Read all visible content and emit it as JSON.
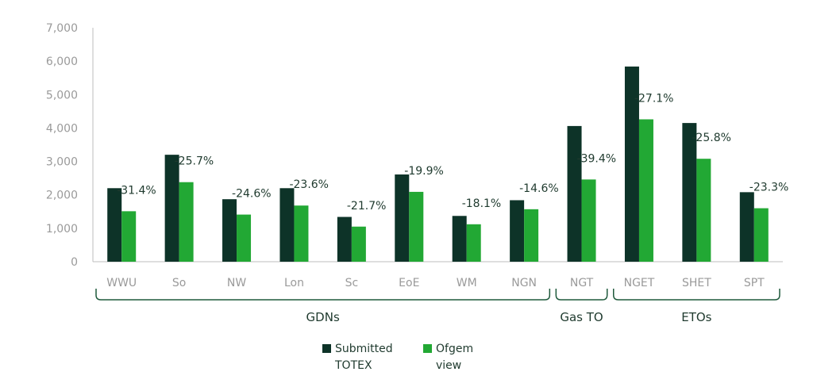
{
  "chart_data": {
    "type": "bar",
    "categories": [
      "WWU",
      "So",
      "NW",
      "Lon",
      "Sc",
      "EoE",
      "WM",
      "NGN",
      "NGT",
      "NGET",
      "SHET",
      "SPT"
    ],
    "series": [
      {
        "name": "Submitted TOTEX",
        "values": [
          2200,
          3200,
          1870,
          2200,
          1340,
          2610,
          1370,
          1840,
          4060,
          5840,
          4150,
          2080
        ],
        "color": "#0d3328"
      },
      {
        "name": "Ofgem view",
        "values": [
          1510,
          2380,
          1410,
          1680,
          1050,
          2090,
          1120,
          1570,
          2460,
          4260,
          3080,
          1600
        ],
        "color": "#22a834"
      }
    ],
    "data_labels": [
      "-31.4%",
      "-25.7%",
      "-24.6%",
      "-23.6%",
      "-21.7%",
      "-19.9%",
      "-18.1%",
      "-14.6%",
      "-39.4%",
      "-27.1%",
      "-25.8%",
      "-23.3%"
    ],
    "groups": [
      {
        "label": "GDNs",
        "from": 0,
        "to": 7
      },
      {
        "label": "Gas TO",
        "from": 8,
        "to": 8
      },
      {
        "label": "ETOs",
        "from": 9,
        "to": 11
      }
    ],
    "yticks": [
      "0",
      "1,000",
      "2,000",
      "3,000",
      "4,000",
      "5,000",
      "6,000",
      "7,000"
    ],
    "ylim": [
      0,
      7000
    ],
    "legend": {
      "placement": "bottom",
      "items": [
        [
          "Submitted",
          "TOTEX"
        ],
        [
          "Ofgem",
          "view"
        ]
      ]
    },
    "grid": false
  }
}
